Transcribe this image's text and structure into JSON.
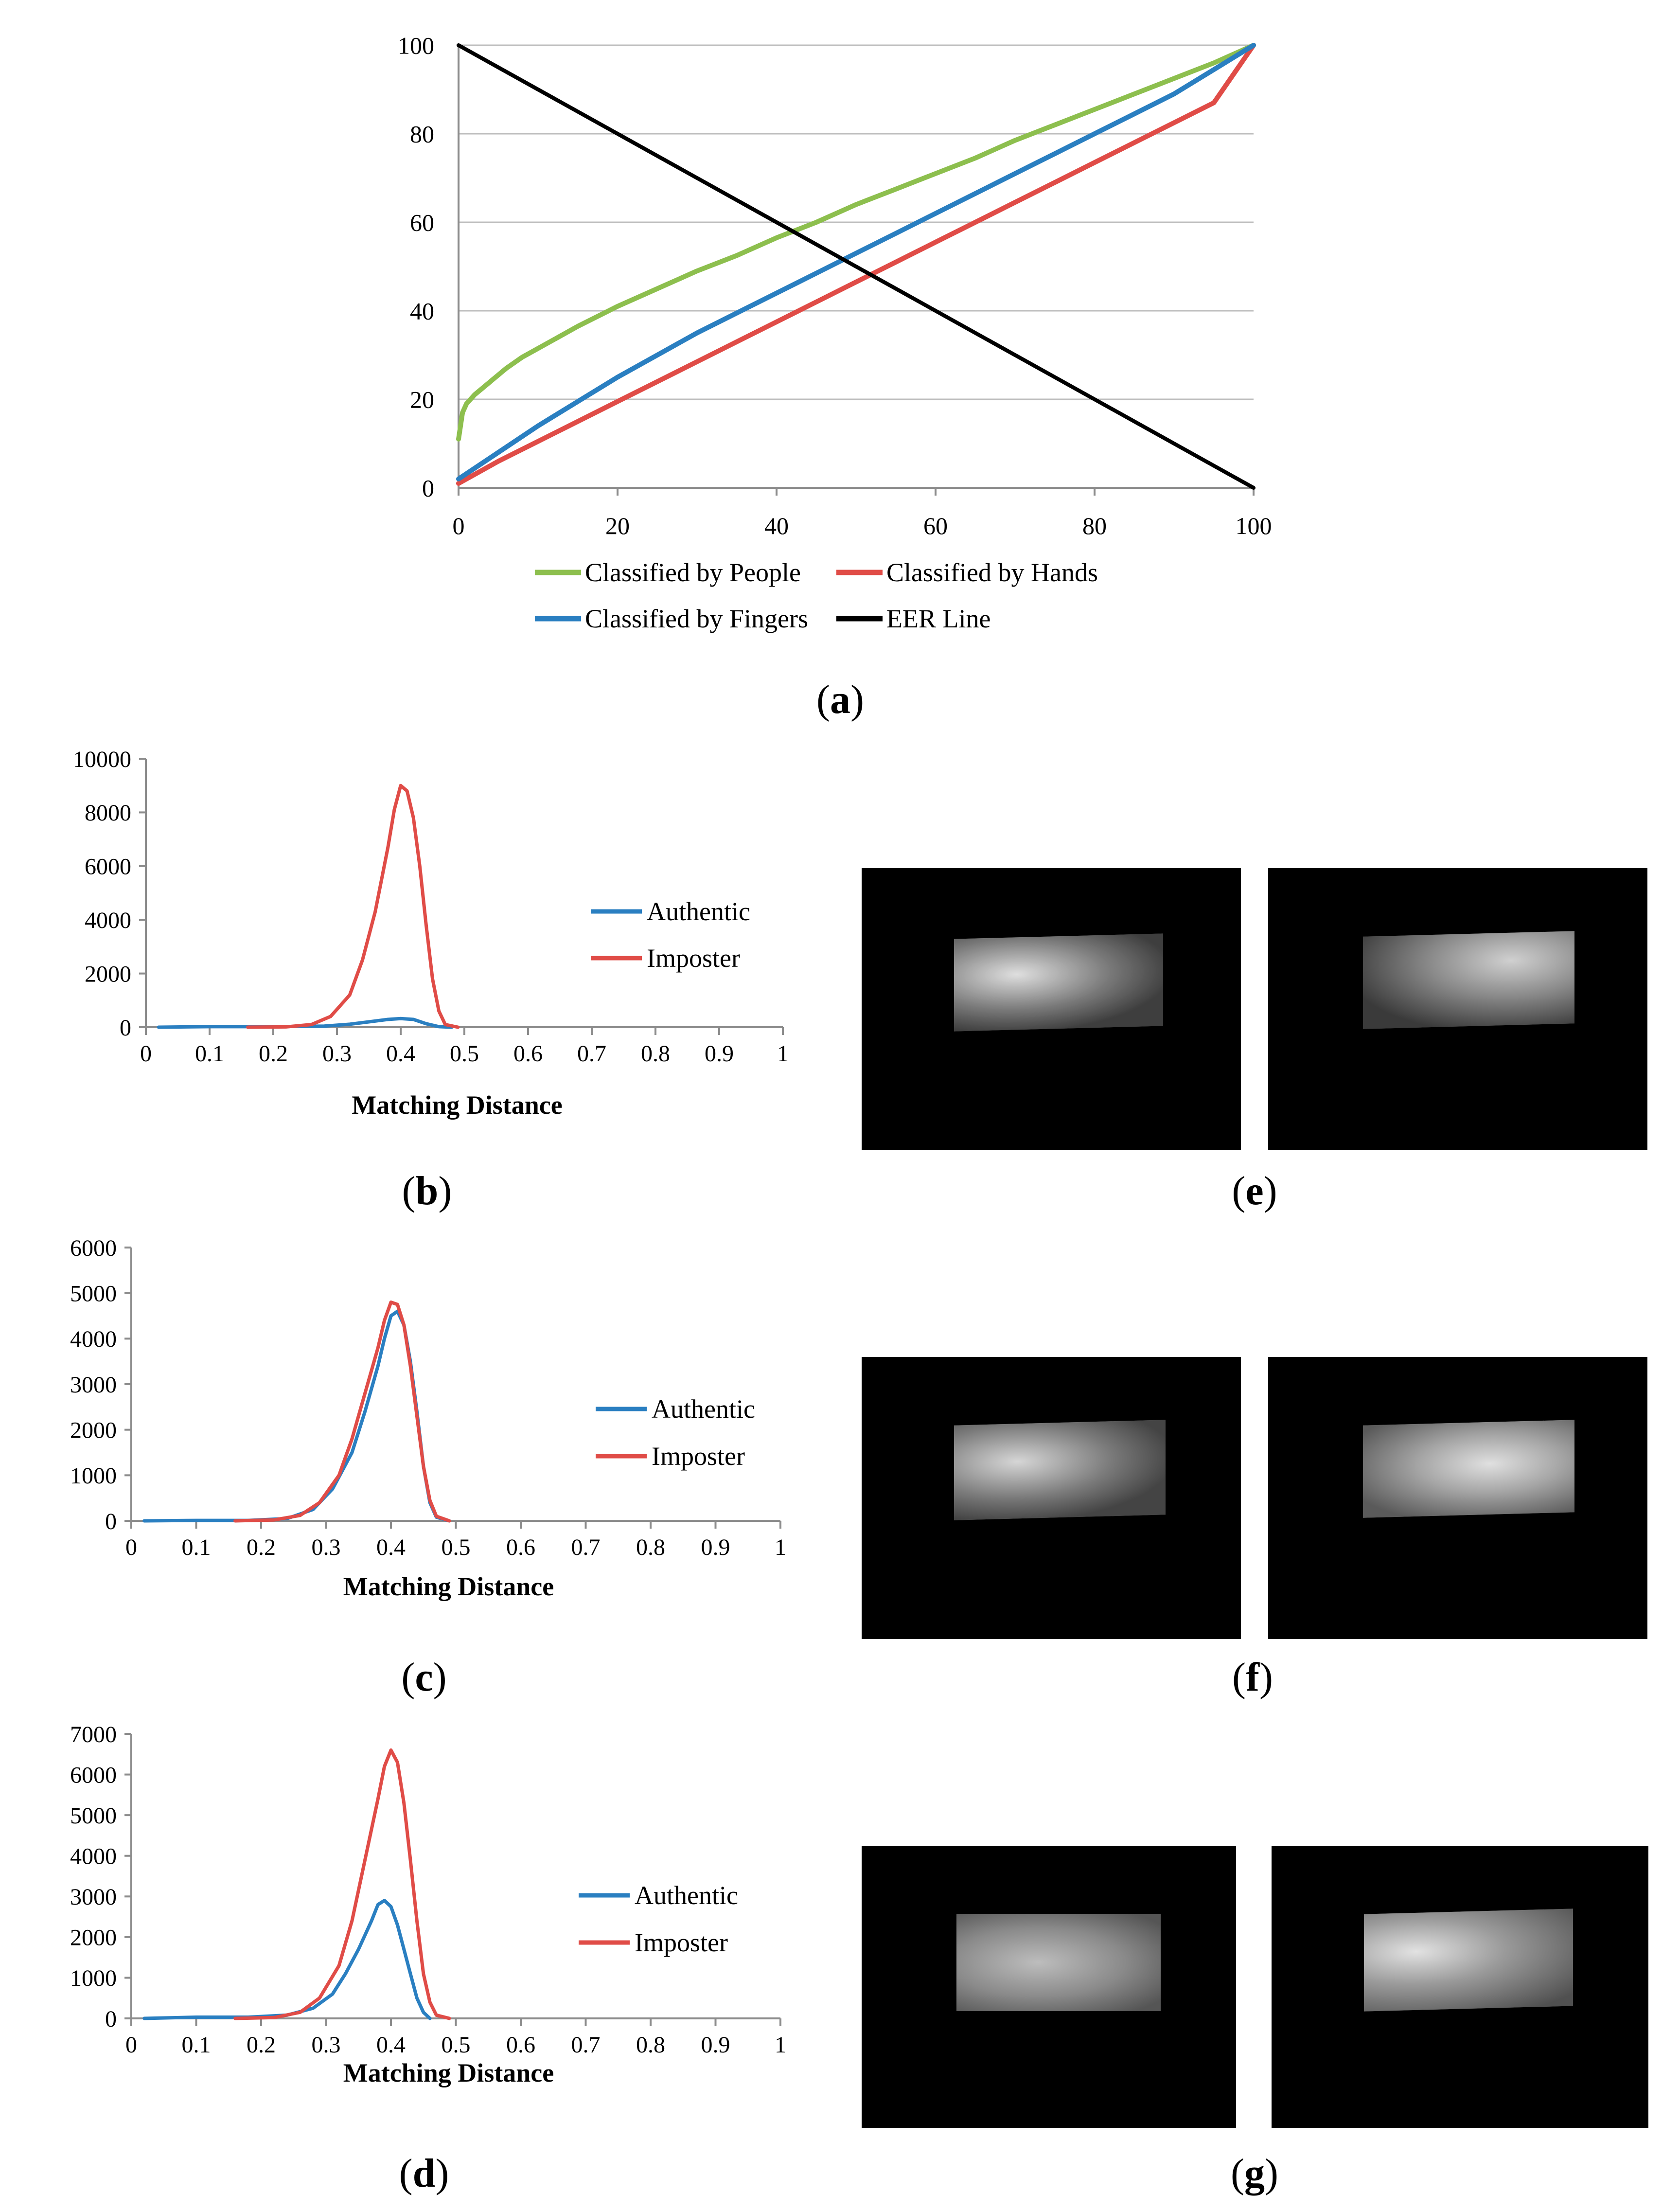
{
  "captions": {
    "a": "a",
    "b": "b",
    "c": "c",
    "d": "d",
    "e": "e",
    "f": "f",
    "g": "g"
  },
  "chart_data": [
    {
      "id": "a",
      "type": "line",
      "title": "",
      "xlabel": "",
      "ylabel": "",
      "xlim": [
        0,
        100
      ],
      "ylim": [
        0,
        100
      ],
      "xticks": [
        "0",
        "20",
        "40",
        "60",
        "80",
        "100"
      ],
      "yticks": [
        "0",
        "20",
        "40",
        "60",
        "80",
        "100"
      ],
      "grid": true,
      "legend": "bottom",
      "series": [
        {
          "name": "Classified by People",
          "color": "#8dbf4e",
          "x": [
            0,
            0.5,
            1,
            2,
            4,
            6,
            8,
            10,
            15,
            20,
            25,
            30,
            35,
            40,
            45,
            50,
            55,
            60,
            65,
            70,
            75,
            80,
            85,
            90,
            95,
            100
          ],
          "y": [
            11,
            17,
            19,
            21,
            24,
            27,
            29.5,
            31.5,
            36.5,
            41,
            45,
            49,
            52.5,
            56.5,
            60,
            64,
            67.5,
            71,
            74.5,
            78.5,
            82,
            85.5,
            89,
            92.5,
            96,
            100
          ]
        },
        {
          "name": "Classified by Hands",
          "color": "#e04c47",
          "x": [
            0,
            5,
            10,
            15,
            20,
            25,
            30,
            35,
            40,
            45,
            50,
            55,
            60,
            65,
            70,
            75,
            80,
            85,
            90,
            95,
            100
          ],
          "y": [
            1,
            6,
            10.5,
            15,
            19.5,
            24,
            28.5,
            33,
            37.5,
            42,
            46.5,
            51,
            55.5,
            60,
            64.5,
            69,
            73.5,
            78,
            82.5,
            87,
            100
          ]
        },
        {
          "name": "Classified by Fingers",
          "color": "#2a7fc1",
          "x": [
            0,
            5,
            10,
            15,
            20,
            25,
            30,
            35,
            40,
            45,
            50,
            55,
            60,
            65,
            70,
            75,
            80,
            85,
            90,
            95,
            100
          ],
          "y": [
            2,
            8,
            14,
            19.5,
            25,
            30,
            35,
            39.5,
            44,
            48.5,
            53,
            57.5,
            62,
            66.5,
            71,
            75.5,
            80,
            84.5,
            89,
            94.5,
            100
          ]
        },
        {
          "name": "EER Line",
          "color": "#000000",
          "x": [
            0,
            100
          ],
          "y": [
            100,
            0
          ]
        }
      ]
    },
    {
      "id": "b",
      "type": "line",
      "xlabel": "Matching Distance",
      "ylabel": "",
      "xlim": [
        0,
        1
      ],
      "ylim": [
        0,
        10000
      ],
      "xticks": [
        "0",
        "0.1",
        "0.2",
        "0.3",
        "0.4",
        "0.5",
        "0.6",
        "0.7",
        "0.8",
        "0.9",
        "1"
      ],
      "yticks": [
        "0",
        "2000",
        "4000",
        "6000",
        "8000",
        "10000"
      ],
      "legend": "right",
      "series": [
        {
          "name": "Authentic",
          "color": "#2a7fc1",
          "x": [
            0.02,
            0.1,
            0.2,
            0.28,
            0.32,
            0.35,
            0.38,
            0.4,
            0.42,
            0.44,
            0.46,
            0.48
          ],
          "y": [
            0,
            20,
            20,
            40,
            110,
            200,
            290,
            320,
            290,
            130,
            20,
            0
          ]
        },
        {
          "name": "Imposter",
          "color": "#e04c47",
          "x": [
            0.16,
            0.22,
            0.26,
            0.29,
            0.32,
            0.34,
            0.36,
            0.38,
            0.39,
            0.4,
            0.41,
            0.42,
            0.43,
            0.44,
            0.45,
            0.46,
            0.47,
            0.49
          ],
          "y": [
            0,
            10,
            100,
            400,
            1200,
            2500,
            4300,
            6700,
            8100,
            9000,
            8800,
            7800,
            6000,
            3800,
            1800,
            600,
            100,
            0
          ]
        }
      ]
    },
    {
      "id": "c",
      "type": "line",
      "xlabel": "Matching Distance",
      "ylabel": "",
      "xlim": [
        0,
        1
      ],
      "ylim": [
        0,
        6000
      ],
      "xticks": [
        "0",
        "0.1",
        "0.2",
        "0.3",
        "0.4",
        "0.5",
        "0.6",
        "0.7",
        "0.8",
        "0.9",
        "1"
      ],
      "yticks": [
        "0",
        "1000",
        "2000",
        "3000",
        "4000",
        "5000",
        "6000"
      ],
      "legend": "right",
      "series": [
        {
          "name": "Authentic",
          "color": "#2a7fc1",
          "x": [
            0.02,
            0.1,
            0.18,
            0.24,
            0.28,
            0.31,
            0.34,
            0.36,
            0.38,
            0.39,
            0.4,
            0.41,
            0.42,
            0.43,
            0.44,
            0.45,
            0.46,
            0.47,
            0.49
          ],
          "y": [
            0,
            10,
            10,
            50,
            250,
            700,
            1500,
            2400,
            3400,
            4000,
            4500,
            4600,
            4300,
            3500,
            2400,
            1200,
            400,
            80,
            0
          ]
        },
        {
          "name": "Imposter",
          "color": "#e04c47",
          "x": [
            0.16,
            0.22,
            0.26,
            0.29,
            0.32,
            0.34,
            0.36,
            0.38,
            0.39,
            0.4,
            0.41,
            0.42,
            0.43,
            0.44,
            0.45,
            0.46,
            0.47,
            0.49
          ],
          "y": [
            0,
            20,
            120,
            400,
            1000,
            1800,
            2800,
            3800,
            4400,
            4800,
            4750,
            4300,
            3400,
            2300,
            1200,
            450,
            100,
            0
          ]
        }
      ]
    },
    {
      "id": "d",
      "type": "line",
      "xlabel": "Matching Distance",
      "ylabel": "",
      "xlim": [
        0,
        1
      ],
      "ylim": [
        0,
        7000
      ],
      "xticks": [
        "0",
        "0.1",
        "0.2",
        "0.3",
        "0.4",
        "0.5",
        "0.6",
        "0.7",
        "0.8",
        "0.9",
        "1"
      ],
      "yticks": [
        "0",
        "1000",
        "2000",
        "3000",
        "4000",
        "5000",
        "6000",
        "7000"
      ],
      "legend": "right",
      "series": [
        {
          "name": "Authentic",
          "color": "#2a7fc1",
          "x": [
            0.02,
            0.1,
            0.18,
            0.24,
            0.28,
            0.31,
            0.33,
            0.35,
            0.37,
            0.38,
            0.39,
            0.4,
            0.41,
            0.42,
            0.43,
            0.44,
            0.45,
            0.46
          ],
          "y": [
            0,
            30,
            30,
            80,
            250,
            600,
            1100,
            1700,
            2400,
            2800,
            2900,
            2750,
            2300,
            1700,
            1100,
            500,
            150,
            0
          ]
        },
        {
          "name": "Imposter",
          "color": "#e04c47",
          "x": [
            0.16,
            0.22,
            0.26,
            0.29,
            0.32,
            0.34,
            0.36,
            0.38,
            0.39,
            0.4,
            0.41,
            0.42,
            0.43,
            0.44,
            0.45,
            0.46,
            0.47,
            0.49
          ],
          "y": [
            0,
            20,
            150,
            500,
            1300,
            2400,
            3900,
            5400,
            6200,
            6600,
            6300,
            5300,
            3900,
            2400,
            1100,
            400,
            80,
            0
          ]
        }
      ]
    }
  ]
}
